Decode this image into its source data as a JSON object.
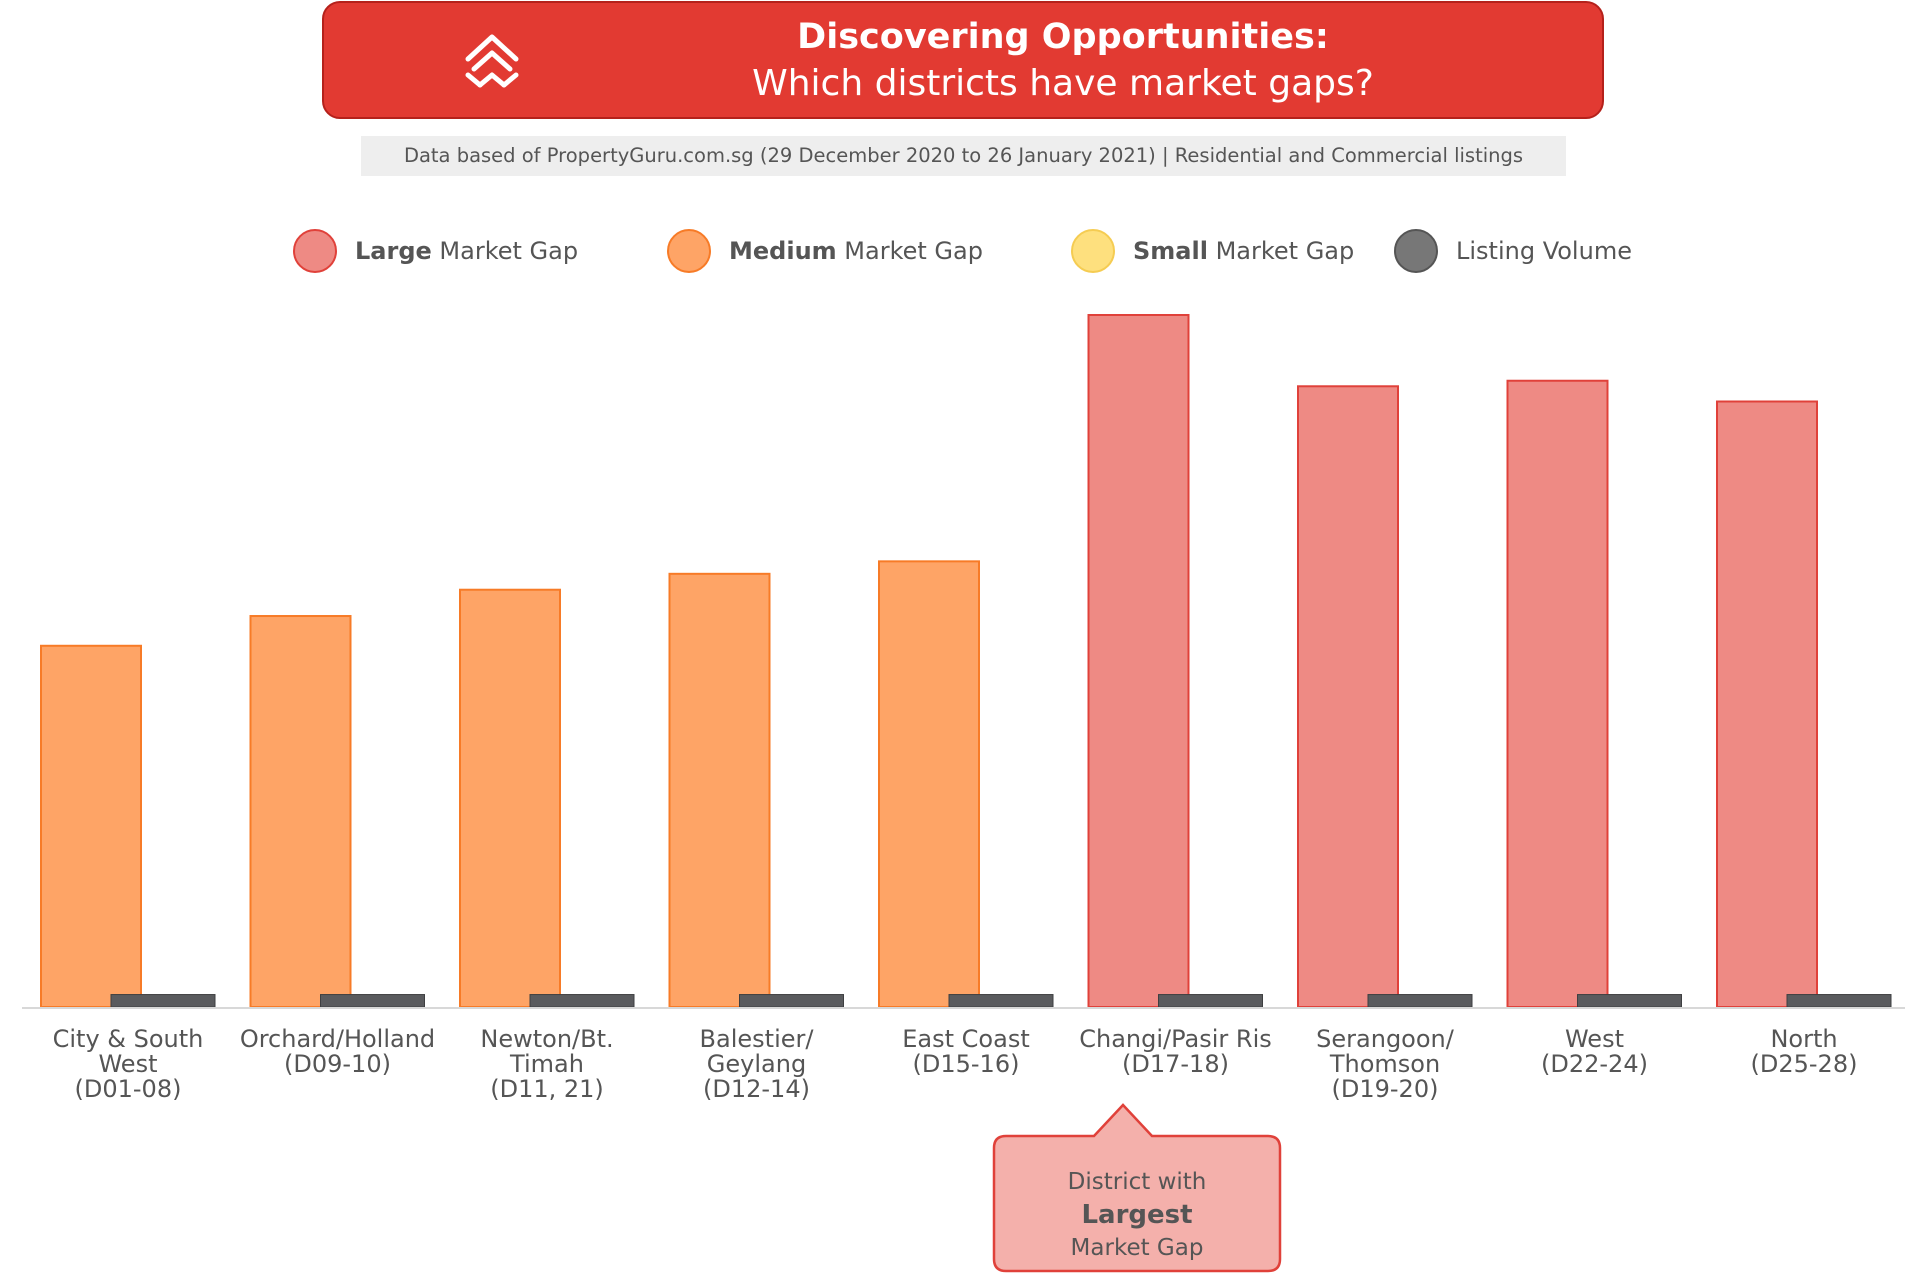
{
  "header": {
    "title": "Discovering Opportunities:",
    "subtitle": "Which districts have market gaps?",
    "logo_icon": "propertyguru-logo-icon"
  },
  "source_note": "Data based of PropertyGuru.com.sg (29 December 2020 to 26 January 2021) | Residential and Commercial listings",
  "legend": [
    {
      "strong": "Large",
      "rest": " Market Gap",
      "color": "#ee8a84",
      "border": "#e0413a"
    },
    {
      "strong": "Medium",
      "rest": " Market Gap",
      "color": "#fea466",
      "border": "#f77b27"
    },
    {
      "strong": "Small",
      "rest": " Market Gap",
      "color": "#fee07e",
      "border": "#f5cc52"
    },
    {
      "strong": "",
      "rest": "Listing Volume",
      "color": "#777777",
      "border": "#555555"
    }
  ],
  "colors": {
    "large": "#ee8a84",
    "large_border": "#e0413a",
    "medium": "#fea466",
    "medium_border": "#f77b27",
    "volume": "#5a5b5e"
  },
  "chart_data": {
    "type": "bar",
    "categories": [
      [
        "City & South",
        "West",
        "(D01-08)"
      ],
      [
        "Orchard/Holland",
        "(D09-10)"
      ],
      [
        "Newton/Bt.",
        "Timah",
        "(D11, 21)"
      ],
      [
        "Balestier/",
        "Geylang",
        "(D12-14)"
      ],
      [
        "East Coast",
        "(D15-16)"
      ],
      [
        "Changi/Pasir Ris",
        "(D17-18)"
      ],
      [
        "Serangoon/",
        "Thomson",
        "(D19-20)"
      ],
      [
        "West",
        "(D22-24)"
      ],
      [
        "North",
        "(D25-28)"
      ]
    ],
    "series": [
      {
        "values": [
          52.2,
          56.5,
          60.3,
          62.6,
          64.4,
          100,
          89.7,
          90.5,
          87.5
        ],
        "gap_level": [
          "medium",
          "medium",
          "medium",
          "medium",
          "medium",
          "large",
          "large",
          "large",
          "large"
        ]
      },
      {
        "values": [
          3,
          3,
          3,
          3,
          3,
          3,
          3,
          3,
          3
        ]
      }
    ],
    "ylim": [
      0,
      100
    ]
  },
  "callout": {
    "line1": "District with",
    "line2": "Largest",
    "line3": "Market Gap"
  }
}
